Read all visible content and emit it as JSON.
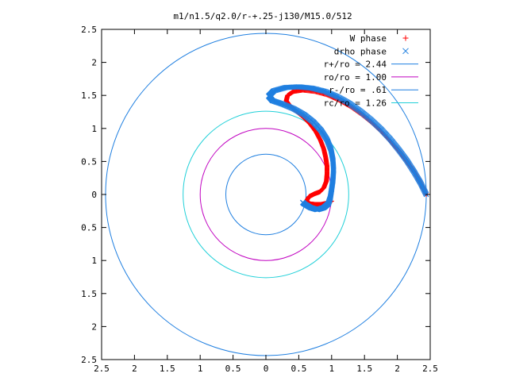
{
  "chart_data": {
    "type": "scatter",
    "title": "m1/n1.5/q2.0/r-+.25-j130/M15.0/512",
    "xlabel": "",
    "ylabel": "",
    "xlim": [
      -2.5,
      2.5
    ],
    "ylim": [
      -2.5,
      2.5
    ],
    "x_ticks": [
      -2.5,
      -2,
      -1.5,
      -1,
      -0.5,
      0,
      0.5,
      1,
      1.5,
      2,
      2.5
    ],
    "y_ticks": [
      -2.5,
      -2,
      -1.5,
      -1,
      -0.5,
      0,
      0.5,
      1,
      1.5,
      2,
      2.5
    ],
    "x_tick_labels": [
      "2.5",
      "2",
      "1.5",
      "1",
      "0.5",
      "0",
      "0.5",
      "1",
      "1.5",
      "2",
      "2.5"
    ],
    "y_tick_labels": [
      "2.5",
      "2",
      "1.5",
      "1",
      "0.5",
      "0",
      "0.5",
      "1",
      "1.5",
      "2",
      "2.5"
    ],
    "grid": false,
    "legend_position": "top-right",
    "series": [
      {
        "name": "W phase",
        "kind": "points",
        "marker": "+",
        "color": "#ff0000",
        "points": [
          [
            2.44,
            0.0
          ],
          [
            2.36,
            0.16
          ],
          [
            2.27,
            0.32
          ],
          [
            2.16,
            0.48
          ],
          [
            2.04,
            0.64
          ],
          [
            1.91,
            0.79
          ],
          [
            1.77,
            0.94
          ],
          [
            1.62,
            1.08
          ],
          [
            1.46,
            1.21
          ],
          [
            1.29,
            1.33
          ],
          [
            1.11,
            1.43
          ],
          [
            0.93,
            1.51
          ],
          [
            0.74,
            1.56
          ],
          [
            0.56,
            1.58
          ],
          [
            0.42,
            1.56
          ],
          [
            0.33,
            1.5
          ],
          [
            0.31,
            1.42
          ],
          [
            0.36,
            1.35
          ],
          [
            0.45,
            1.27
          ],
          [
            0.56,
            1.18
          ],
          [
            0.67,
            1.07
          ],
          [
            0.76,
            0.95
          ],
          [
            0.83,
            0.82
          ],
          [
            0.88,
            0.69
          ],
          [
            0.91,
            0.56
          ],
          [
            0.93,
            0.43
          ],
          [
            0.93,
            0.31
          ],
          [
            0.92,
            0.2
          ],
          [
            0.88,
            0.1
          ],
          [
            0.82,
            0.04
          ],
          [
            0.74,
            0.01
          ],
          [
            0.66,
            -0.03
          ],
          [
            0.62,
            -0.09
          ],
          [
            0.66,
            -0.14
          ],
          [
            0.74,
            -0.15
          ],
          [
            0.84,
            -0.15
          ],
          [
            0.94,
            -0.13
          ],
          [
            1.0,
            -0.1
          ]
        ]
      },
      {
        "name": "drho phase",
        "kind": "points",
        "marker": "x",
        "color": "#1f7fe0",
        "points": [
          [
            2.44,
            0.0
          ],
          [
            2.35,
            0.18
          ],
          [
            2.25,
            0.35
          ],
          [
            2.14,
            0.52
          ],
          [
            2.02,
            0.68
          ],
          [
            1.89,
            0.84
          ],
          [
            1.75,
            0.99
          ],
          [
            1.6,
            1.13
          ],
          [
            1.44,
            1.26
          ],
          [
            1.27,
            1.38
          ],
          [
            1.09,
            1.48
          ],
          [
            0.9,
            1.56
          ],
          [
            0.7,
            1.61
          ],
          [
            0.5,
            1.63
          ],
          [
            0.3,
            1.62
          ],
          [
            0.12,
            1.57
          ],
          [
            0.04,
            1.49
          ],
          [
            0.1,
            1.42
          ],
          [
            0.25,
            1.37
          ],
          [
            0.42,
            1.3
          ],
          [
            0.58,
            1.21
          ],
          [
            0.72,
            1.1
          ],
          [
            0.84,
            0.97
          ],
          [
            0.93,
            0.83
          ],
          [
            0.99,
            0.68
          ],
          [
            1.02,
            0.52
          ],
          [
            1.03,
            0.37
          ],
          [
            1.02,
            0.22
          ],
          [
            1.0,
            0.08
          ],
          [
            0.98,
            -0.05
          ],
          [
            0.95,
            -0.14
          ],
          [
            0.88,
            -0.2
          ],
          [
            0.78,
            -0.23
          ],
          [
            0.68,
            -0.2
          ],
          [
            0.58,
            -0.14
          ],
          [
            0.56,
            -0.12
          ]
        ]
      },
      {
        "name": "r+/ro = 2.44",
        "kind": "circle",
        "radius": 2.44,
        "color": "#1f7fe0"
      },
      {
        "name": "ro/ro = 1.00",
        "kind": "circle",
        "radius": 1.0,
        "color": "#c000c0"
      },
      {
        "name": "r-/ro = .61",
        "kind": "circle",
        "radius": 0.61,
        "color": "#1f7fe0"
      },
      {
        "name": "rc/ro = 1.26",
        "kind": "circle",
        "radius": 1.26,
        "color": "#20d0d8"
      }
    ]
  }
}
